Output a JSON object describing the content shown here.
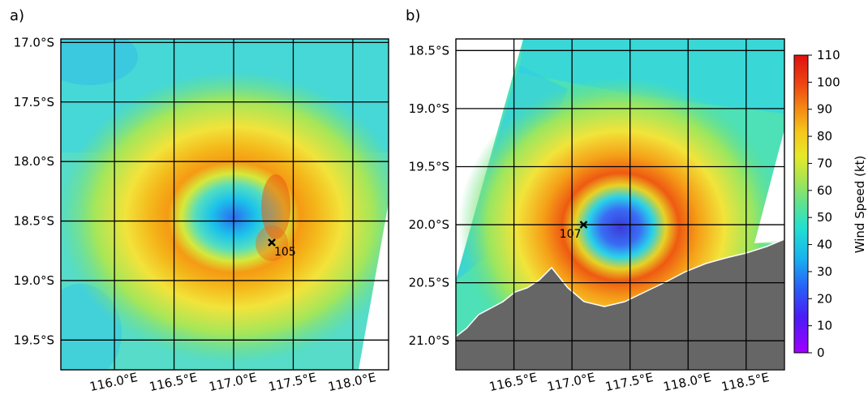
{
  "chart_data": [
    {
      "type": "heatmap",
      "panel_label": "a)",
      "variable": "Wind Speed",
      "xlim": [
        115.55,
        118.3
      ],
      "ylim": [
        -19.75,
        -16.97
      ],
      "x_ticks": [
        116.0,
        116.5,
        117.0,
        117.5,
        118.0
      ],
      "x_tick_labels": [
        "116.0°E",
        "116.5°E",
        "117.0°E",
        "117.5°E",
        "118.0°E"
      ],
      "y_ticks": [
        -17.0,
        -17.5,
        -18.0,
        -18.5,
        -19.0,
        -19.5
      ],
      "y_tick_labels": [
        "17.0°S",
        "17.5°S",
        "18.0°S",
        "18.5°S",
        "19.0°S",
        "19.5°S"
      ],
      "grid": true,
      "eye_center": {
        "lon": 117.02,
        "lat": -18.47
      },
      "max_wind_marker": {
        "lon": 117.32,
        "lat": -18.68,
        "value": 105,
        "label": "105"
      }
    },
    {
      "type": "heatmap",
      "panel_label": "b)",
      "variable": "Wind Speed",
      "xlim": [
        116.0,
        118.83
      ],
      "ylim": [
        -21.25,
        -18.4
      ],
      "x_ticks": [
        116.5,
        117.0,
        117.5,
        118.0,
        118.5
      ],
      "x_tick_labels": [
        "116.5°E",
        "117.0°E",
        "117.5°E",
        "118.0°E",
        "118.5°E"
      ],
      "y_ticks": [
        -18.5,
        -19.0,
        -19.5,
        -20.0,
        -20.5,
        -21.0
      ],
      "y_tick_labels": [
        "18.5°S",
        "19.0°S",
        "19.5°S",
        "20.0°S",
        "20.5°S",
        "21.0°S"
      ],
      "grid": true,
      "land_color": "#666666",
      "eye_center": {
        "lon": 117.45,
        "lat": -20.0
      },
      "max_wind_marker": {
        "lon": 117.1,
        "lat": -20.0,
        "value": 107,
        "label": "107"
      }
    }
  ],
  "colorbar": {
    "label": "Wind Speed (kt)",
    "min": 0,
    "max": 110,
    "ticks": [
      0,
      10,
      20,
      30,
      40,
      50,
      60,
      70,
      80,
      90,
      100,
      110
    ],
    "tick_labels": [
      "0",
      "10",
      "20",
      "30",
      "40",
      "50",
      "60",
      "70",
      "80",
      "90",
      "100",
      "110"
    ],
    "colormap": "jet"
  }
}
